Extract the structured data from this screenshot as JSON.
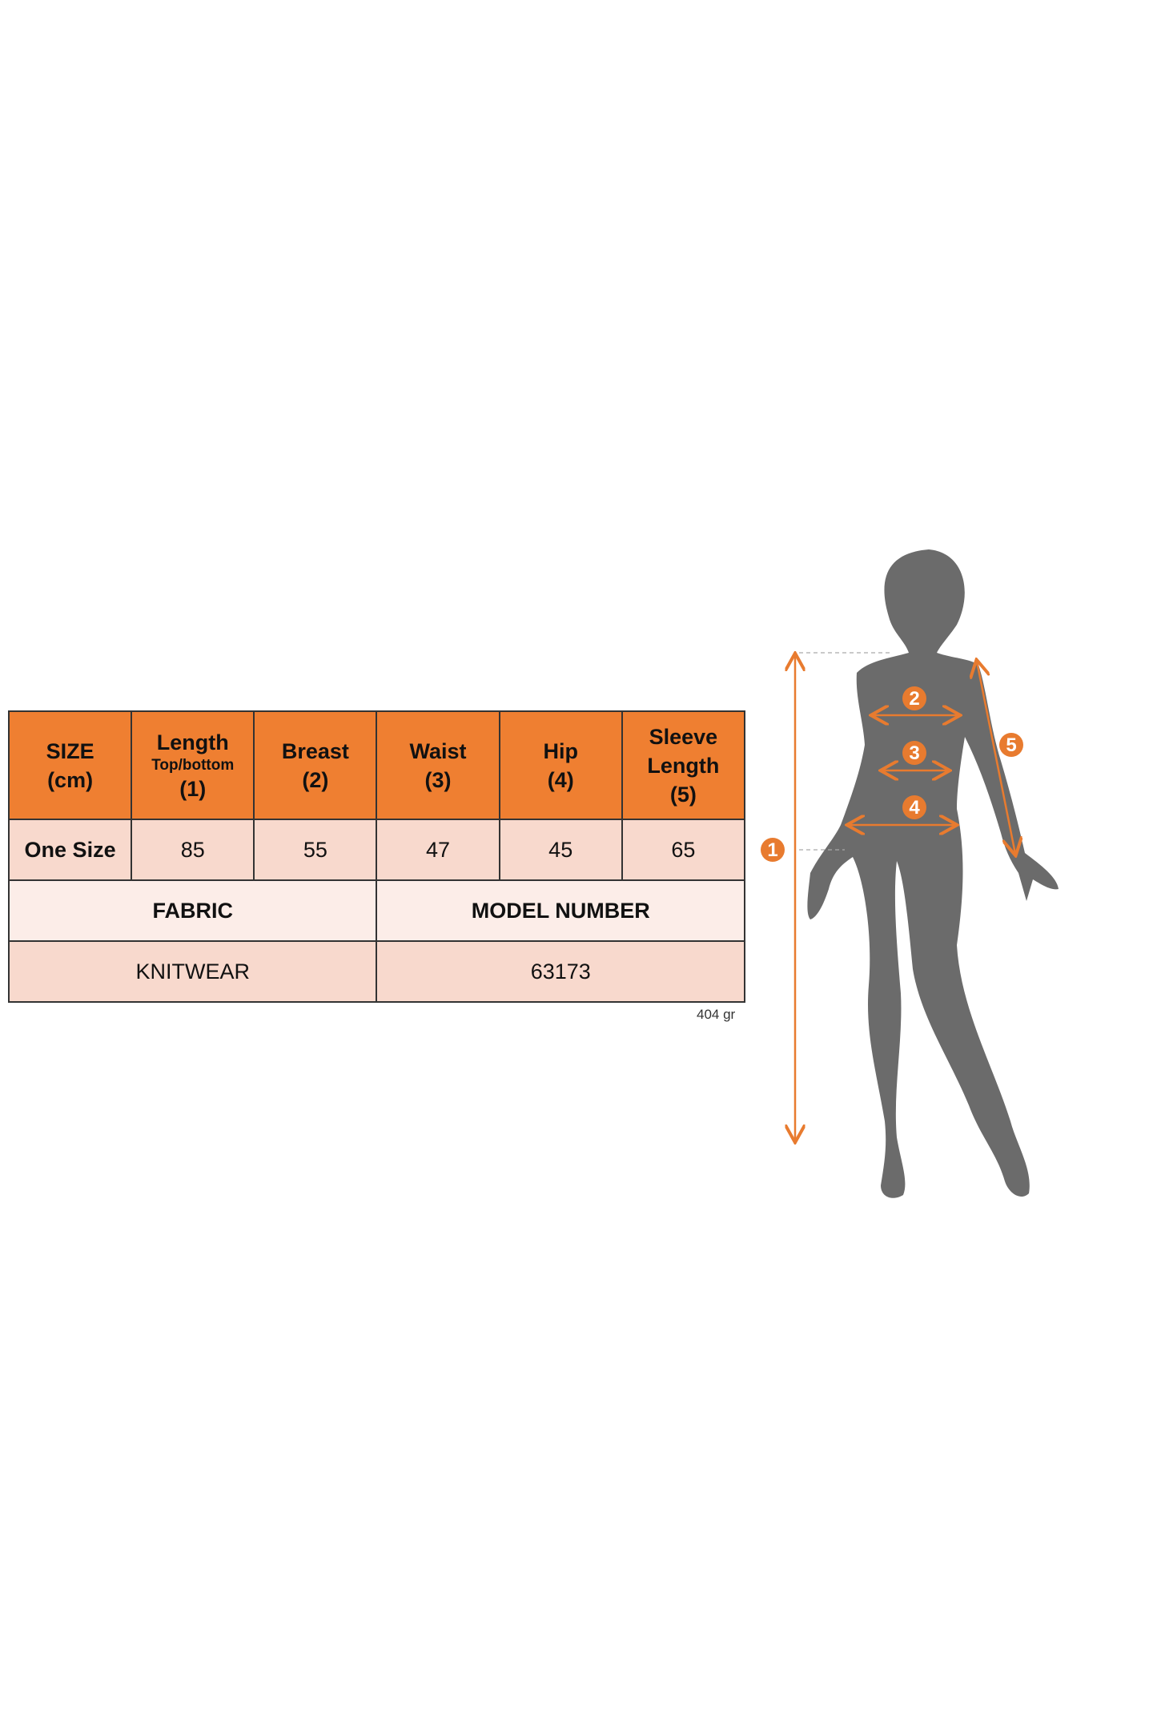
{
  "table": {
    "headers": [
      {
        "lines": [
          "SIZE",
          "(cm)"
        ]
      },
      {
        "title": "Length",
        "sub": "Top/bottom",
        "num": "(1)"
      },
      {
        "lines": [
          "Breast",
          "(2)"
        ]
      },
      {
        "lines": [
          "Waist",
          "(3)"
        ]
      },
      {
        "lines": [
          "Hip",
          "(4)"
        ]
      },
      {
        "lines": [
          "Sleeve",
          "Length",
          "(5)"
        ]
      }
    ],
    "row": [
      "One Size",
      "85",
      "55",
      "47",
      "45",
      "65"
    ],
    "fabric_label": "FABRIC",
    "model_label": "MODEL NUMBER",
    "fabric_value": "KNITWEAR",
    "model_value": "63173"
  },
  "weight": "404 gr",
  "figure": {
    "badges": [
      "1",
      "2",
      "3",
      "4",
      "5"
    ],
    "accent_color": "#e87b2f",
    "silhouette_color": "#6b6b6b"
  },
  "colors": {
    "header": "#ef7f31",
    "row_light": "#fcede8",
    "row_pink": "#f8d9cd"
  }
}
